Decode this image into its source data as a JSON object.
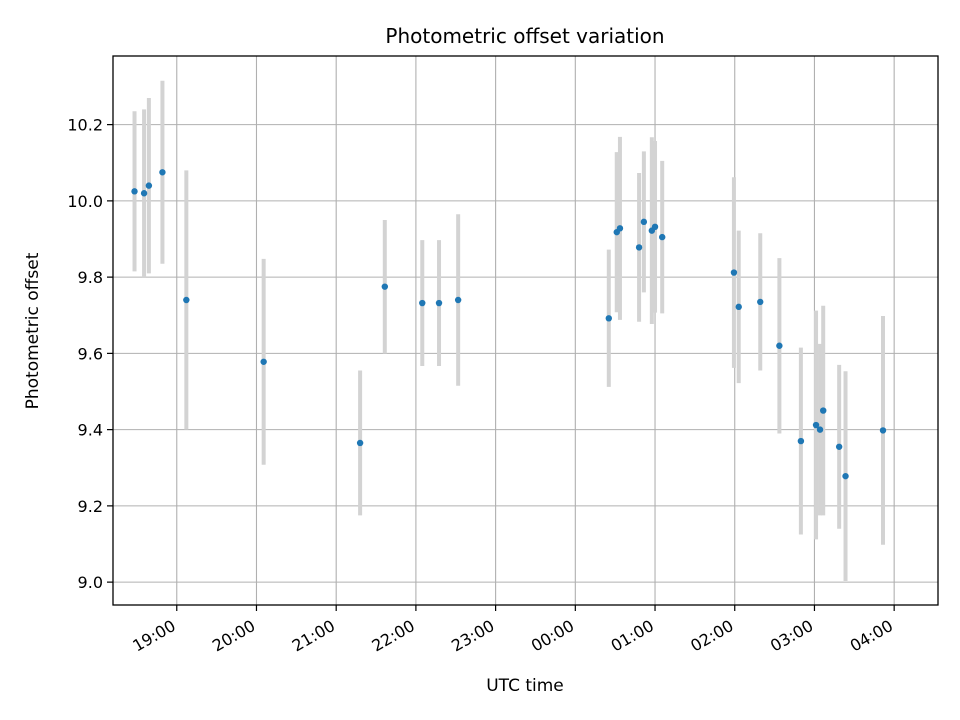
{
  "chart_data": {
    "type": "scatter",
    "title": "Photometric offset variation",
    "xlabel": "UTC time",
    "ylabel": "Photometric offset",
    "grid": true,
    "x_unit": "hours since 18:00 UTC",
    "xlim": [
      0.2,
      10.55
    ],
    "ylim": [
      8.94,
      10.38
    ],
    "x_ticks": [
      {
        "value": 1,
        "label": "19:00"
      },
      {
        "value": 2,
        "label": "20:00"
      },
      {
        "value": 3,
        "label": "21:00"
      },
      {
        "value": 4,
        "label": "22:00"
      },
      {
        "value": 5,
        "label": "23:00"
      },
      {
        "value": 6,
        "label": "00:00"
      },
      {
        "value": 7,
        "label": "01:00"
      },
      {
        "value": 8,
        "label": "02:00"
      },
      {
        "value": 9,
        "label": "03:00"
      },
      {
        "value": 10,
        "label": "04:00"
      }
    ],
    "y_ticks": [
      {
        "value": 9.0,
        "label": "9.0"
      },
      {
        "value": 9.2,
        "label": "9.2"
      },
      {
        "value": 9.4,
        "label": "9.4"
      },
      {
        "value": 9.6,
        "label": "9.6"
      },
      {
        "value": 9.8,
        "label": "9.8"
      },
      {
        "value": 10.0,
        "label": "10.0"
      },
      {
        "value": 10.2,
        "label": "10.2"
      }
    ],
    "marker_color": "#1f77b4",
    "errorbar_color": "#d3d3d3",
    "points": [
      {
        "x": 0.47,
        "y": 10.025,
        "yerr": 0.21
      },
      {
        "x": 0.59,
        "y": 10.02,
        "yerr": 0.22
      },
      {
        "x": 0.65,
        "y": 10.04,
        "yerr": 0.23
      },
      {
        "x": 0.82,
        "y": 10.075,
        "yerr": 0.24
      },
      {
        "x": 1.12,
        "y": 9.74,
        "yerr": 0.34
      },
      {
        "x": 2.09,
        "y": 9.578,
        "yerr": 0.27
      },
      {
        "x": 3.3,
        "y": 9.365,
        "yerr": 0.19
      },
      {
        "x": 3.61,
        "y": 9.775,
        "yerr": 0.175
      },
      {
        "x": 4.08,
        "y": 9.732,
        "yerr": 0.165
      },
      {
        "x": 4.29,
        "y": 9.732,
        "yerr": 0.165
      },
      {
        "x": 4.53,
        "y": 9.74,
        "yerr": 0.225
      },
      {
        "x": 6.42,
        "y": 9.692,
        "yerr": 0.18
      },
      {
        "x": 6.52,
        "y": 9.918,
        "yerr": 0.21
      },
      {
        "x": 6.56,
        "y": 9.928,
        "yerr": 0.24
      },
      {
        "x": 6.8,
        "y": 9.878,
        "yerr": 0.195
      },
      {
        "x": 6.86,
        "y": 9.945,
        "yerr": 0.185
      },
      {
        "x": 6.96,
        "y": 9.922,
        "yerr": 0.245
      },
      {
        "x": 7.0,
        "y": 9.932,
        "yerr": 0.225
      },
      {
        "x": 7.09,
        "y": 9.905,
        "yerr": 0.2
      },
      {
        "x": 7.99,
        "y": 9.812,
        "yerr": 0.25
      },
      {
        "x": 8.05,
        "y": 9.722,
        "yerr": 0.2
      },
      {
        "x": 8.32,
        "y": 9.735,
        "yerr": 0.18
      },
      {
        "x": 8.56,
        "y": 9.62,
        "yerr": 0.23
      },
      {
        "x": 8.83,
        "y": 9.37,
        "yerr": 0.245
      },
      {
        "x": 9.02,
        "y": 9.412,
        "yerr": 0.3
      },
      {
        "x": 9.07,
        "y": 9.4,
        "yerr": 0.225
      },
      {
        "x": 9.11,
        "y": 9.45,
        "yerr": 0.275
      },
      {
        "x": 9.31,
        "y": 9.355,
        "yerr": 0.215
      },
      {
        "x": 9.39,
        "y": 9.278,
        "yerr": 0.275
      },
      {
        "x": 9.86,
        "y": 9.398,
        "yerr": 0.3
      }
    ]
  }
}
